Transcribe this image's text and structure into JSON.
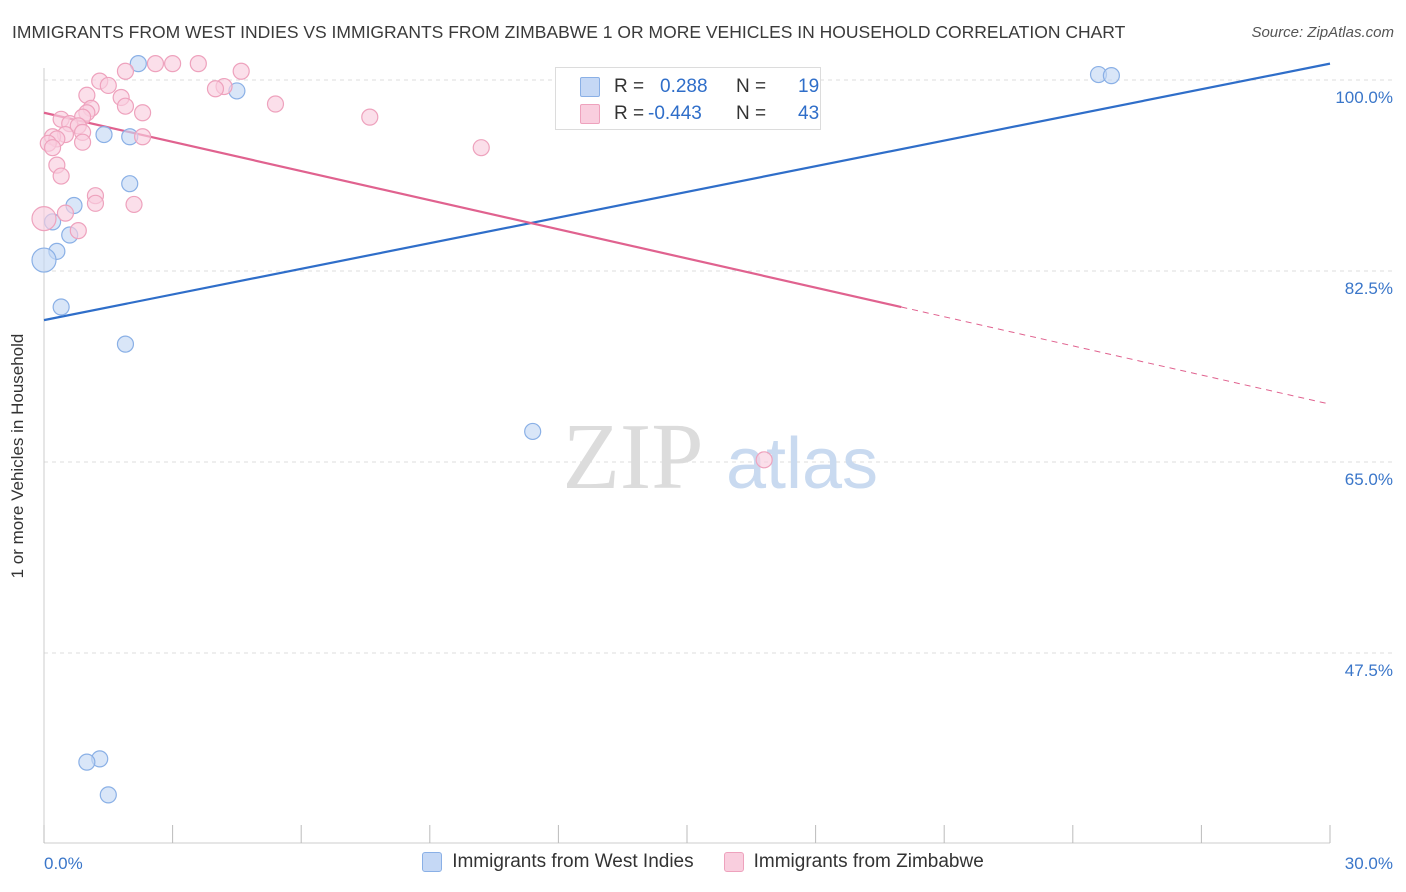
{
  "title": "IMMIGRANTS FROM WEST INDIES VS IMMIGRANTS FROM ZIMBABWE 1 OR MORE VEHICLES IN HOUSEHOLD CORRELATION CHART",
  "source": "Source: ZipAtlas.com",
  "colors": {
    "blue": "#2f6ec9",
    "blue_fill": "#c5d8f5",
    "pink": "#e0628f",
    "pink_fill": "#f9cede",
    "grid": "#dddddd",
    "axis_text": "#3a76c9"
  },
  "chart_data": {
    "type": "scatter",
    "title": "IMMIGRANTS FROM WEST INDIES VS IMMIGRANTS FROM ZIMBABWE 1 OR MORE VEHICLES IN HOUSEHOLD CORRELATION CHART",
    "xlabel": "",
    "ylabel": "1 or more Vehicles in Household",
    "xlim": [
      0,
      30
    ],
    "ylim": [
      30,
      100
    ],
    "x_tick_labels": [
      "0.0%",
      "30.0%"
    ],
    "y_ticks": [
      47.5,
      65.0,
      82.5,
      100.0
    ],
    "y_tick_labels": [
      "47.5%",
      "65.0%",
      "82.5%",
      "100.0%"
    ],
    "grid": true,
    "legend_position": "bottom",
    "series": [
      {
        "name": "Immigrants from West Indies",
        "color": "blue",
        "R": "0.288",
        "N": "19",
        "points": [
          [
            2.2,
            101.5
          ],
          [
            4.5,
            99.0
          ],
          [
            1.4,
            95.0
          ],
          [
            2.0,
            94.8
          ],
          [
            2.0,
            90.5
          ],
          [
            0.7,
            88.5
          ],
          [
            0.2,
            87.0
          ],
          [
            0.6,
            85.8
          ],
          [
            0.3,
            84.3
          ],
          [
            0.0,
            83.5
          ],
          [
            0.4,
            79.2
          ],
          [
            1.9,
            75.8
          ],
          [
            11.4,
            67.8
          ],
          [
            24.6,
            100.5
          ],
          [
            24.9,
            100.4
          ],
          [
            1.3,
            37.8
          ],
          [
            1.0,
            37.5
          ],
          [
            1.5,
            34.5
          ]
        ],
        "point_size": [
          12,
          12,
          12,
          12,
          12,
          12,
          12,
          12,
          12,
          18,
          12,
          12,
          12,
          12,
          12,
          12,
          12,
          12
        ],
        "trend": {
          "x0": 0,
          "y0": 78.0,
          "x1": 30,
          "y1": 101.5,
          "dashed_from": null
        }
      },
      {
        "name": "Immigrants from Zimbabwe",
        "color": "pink",
        "R": "-0.443",
        "N": "43",
        "points": [
          [
            2.6,
            101.5
          ],
          [
            3.0,
            101.5
          ],
          [
            3.6,
            101.5
          ],
          [
            4.6,
            100.8
          ],
          [
            1.9,
            100.8
          ],
          [
            1.3,
            99.9
          ],
          [
            1.5,
            99.5
          ],
          [
            4.2,
            99.4
          ],
          [
            1.8,
            98.4
          ],
          [
            4.0,
            99.2
          ],
          [
            1.0,
            98.6
          ],
          [
            1.9,
            97.6
          ],
          [
            2.3,
            97.0
          ],
          [
            1.1,
            97.4
          ],
          [
            1.0,
            97.0
          ],
          [
            0.9,
            96.6
          ],
          [
            0.4,
            96.4
          ],
          [
            5.4,
            97.8
          ],
          [
            7.6,
            96.6
          ],
          [
            0.6,
            96.0
          ],
          [
            0.8,
            95.8
          ],
          [
            0.9,
            95.2
          ],
          [
            0.5,
            95.0
          ],
          [
            0.2,
            94.8
          ],
          [
            0.3,
            94.6
          ],
          [
            2.3,
            94.8
          ],
          [
            0.9,
            94.3
          ],
          [
            0.1,
            94.2
          ],
          [
            0.2,
            93.8
          ],
          [
            10.2,
            93.8
          ],
          [
            0.3,
            92.2
          ],
          [
            0.4,
            91.2
          ],
          [
            1.2,
            89.4
          ],
          [
            1.2,
            88.7
          ],
          [
            2.1,
            88.6
          ],
          [
            0.5,
            87.8
          ],
          [
            0.0,
            87.3
          ],
          [
            0.8,
            86.2
          ],
          [
            16.8,
            65.2
          ]
        ],
        "point_size": [
          12,
          12,
          12,
          12,
          12,
          12,
          12,
          12,
          12,
          12,
          12,
          12,
          12,
          12,
          12,
          12,
          12,
          12,
          12,
          12,
          12,
          12,
          12,
          12,
          12,
          12,
          12,
          12,
          12,
          12,
          12,
          12,
          12,
          12,
          12,
          12,
          18,
          12,
          12
        ],
        "trend": {
          "x0": 0,
          "y0": 97.0,
          "x1": 30,
          "y1": 70.3,
          "dashed_from": 20.0
        }
      }
    ]
  },
  "stats_legend": {
    "r_label": "R =",
    "n_label": "N =",
    "rows": [
      {
        "series": "Immigrants from West Indies",
        "r": "0.288",
        "n": "19"
      },
      {
        "series": "Immigrants from Zimbabwe",
        "r": "-0.443",
        "n": "43"
      }
    ]
  },
  "legend": {
    "items": [
      "Immigrants from West Indies",
      "Immigrants from Zimbabwe"
    ]
  },
  "watermark": {
    "zip": "ZIP",
    "atlas": "atlas"
  }
}
